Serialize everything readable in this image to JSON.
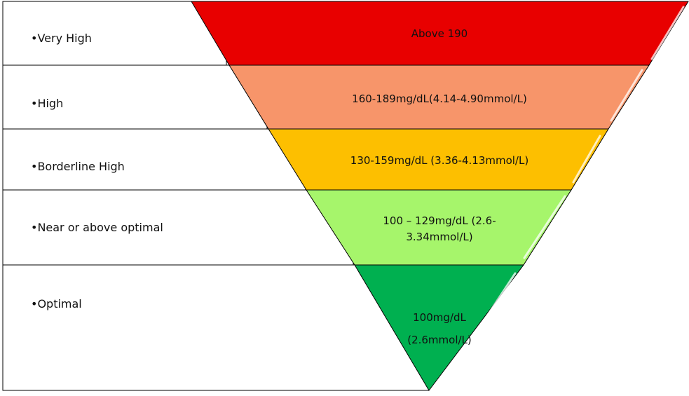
{
  "levels": [
    {
      "label": "•Very High",
      "range_lines": [
        "Above 190"
      ],
      "color": "#e80000"
    },
    {
      "label": "•High",
      "range_lines": [
        "160-189mg/dL(4.14-4.90mmol/L)"
      ],
      "color": "#f7956a"
    },
    {
      "label": "•Borderline High",
      "range_lines": [
        "130-159mg/dL (3.36-4.13mmol/L)"
      ],
      "color": "#fdbf00"
    },
    {
      "label": "•Near or above optimal",
      "range_lines": [
        "100 – 129mg/dL (2.6-",
        "3.34mmol/L)"
      ],
      "color": "#a6f56b"
    },
    {
      "label": "•Optimal",
      "range_lines": [
        "100mg/dL",
        "(2.6mmol/L)"
      ],
      "color": "#00b050"
    }
  ]
}
